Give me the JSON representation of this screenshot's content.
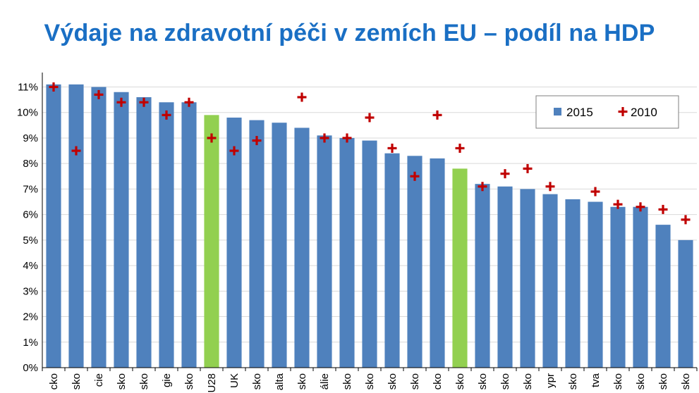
{
  "title": "Výdaje na zdravotní péči v zemích EU – podíl na HDP",
  "colors": {
    "title": "#1a6fc4",
    "bar": "#4f81bd",
    "bar_highlight": "#92d050",
    "marker": "#c00000",
    "grid": "#d9d9d9",
    "axis": "#000000"
  },
  "chart_data": {
    "type": "bar",
    "categories": [
      "cko",
      "sko",
      "cie",
      "sko",
      "sko",
      "gie",
      "sko",
      "U28",
      "UK",
      "sko",
      "alta",
      "sko",
      "álie",
      "sko",
      "sko",
      "sko",
      "sko",
      "cko",
      "sko",
      "sko",
      "sko",
      "sko",
      "ypr",
      "sko",
      "tva",
      "sko",
      "sko",
      "sko",
      "sko"
    ],
    "highlight": [
      false,
      false,
      false,
      false,
      false,
      false,
      false,
      true,
      false,
      false,
      false,
      false,
      false,
      false,
      false,
      false,
      false,
      false,
      true,
      false,
      false,
      false,
      false,
      false,
      false,
      false,
      false,
      false,
      false
    ],
    "series": [
      {
        "name": "2015",
        "type": "bar",
        "values": [
          11.1,
          11.1,
          11.0,
          10.8,
          10.6,
          10.4,
          10.4,
          9.9,
          9.8,
          9.7,
          9.6,
          9.4,
          9.1,
          9.0,
          8.9,
          8.4,
          8.3,
          8.2,
          7.8,
          7.2,
          7.1,
          7.0,
          6.8,
          6.6,
          6.5,
          6.3,
          6.3,
          5.6,
          5.0
        ]
      },
      {
        "name": "2010",
        "type": "marker",
        "values": [
          11.0,
          8.5,
          10.7,
          10.4,
          10.4,
          9.9,
          10.4,
          9.0,
          8.5,
          8.9,
          null,
          10.6,
          9.0,
          9.0,
          9.8,
          8.6,
          7.5,
          9.9,
          8.6,
          7.1,
          7.6,
          7.8,
          7.1,
          null,
          6.9,
          6.4,
          6.3,
          6.2,
          5.8
        ]
      }
    ],
    "yticks": [
      "0%",
      "1%",
      "2%",
      "3%",
      "4%",
      "5%",
      "6%",
      "7%",
      "8%",
      "9%",
      "10%",
      "11%"
    ],
    "ylim": [
      0,
      11.4
    ],
    "grid": true,
    "legend": {
      "placement": "top-right",
      "entries": [
        "2015",
        "2010"
      ]
    }
  }
}
